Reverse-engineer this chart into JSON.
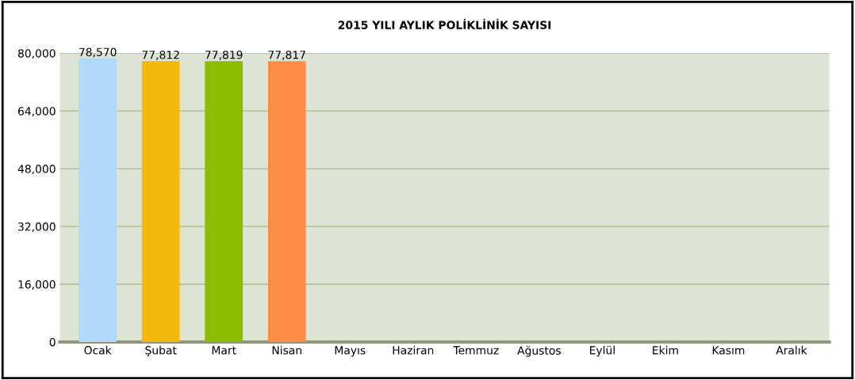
{
  "chart_data": {
    "type": "bar",
    "title": "2015 YILI AYLIK POLİKLİNİK SAYISI",
    "categories": [
      "Ocak",
      "Şubat",
      "Mart",
      "Nisan",
      "Mayıs",
      "Haziran",
      "Temmuz",
      "Ağustos",
      "Eylül",
      "Ekim",
      "Kasım",
      "Aralık"
    ],
    "values": [
      78570,
      77812,
      77819,
      77817,
      null,
      null,
      null,
      null,
      null,
      null,
      null,
      null
    ],
    "colors": [
      "#b0d8f8",
      "#f5b80c",
      "#8cbc00",
      "#ff8c44",
      "#b0d8f8",
      "#f5b80c",
      "#8cbc00",
      "#ff8c44",
      "#b0d8f8",
      "#f5b80c",
      "#8cbc00",
      "#ff8c44"
    ],
    "value_labels": [
      "78,570",
      "77,812",
      "77,819",
      "77,817",
      null,
      null,
      null,
      null,
      null,
      null,
      null,
      null
    ],
    "ylim": [
      0,
      80000
    ],
    "yticks": [
      {
        "value": 0,
        "label": "0"
      },
      {
        "value": 16000,
        "label": "16,000"
      },
      {
        "value": 32000,
        "label": "32,000"
      },
      {
        "value": 48000,
        "label": "48,000"
      },
      {
        "value": 64000,
        "label": "64,000"
      },
      {
        "value": 80000,
        "label": "80,000"
      }
    ],
    "grid": "y"
  }
}
